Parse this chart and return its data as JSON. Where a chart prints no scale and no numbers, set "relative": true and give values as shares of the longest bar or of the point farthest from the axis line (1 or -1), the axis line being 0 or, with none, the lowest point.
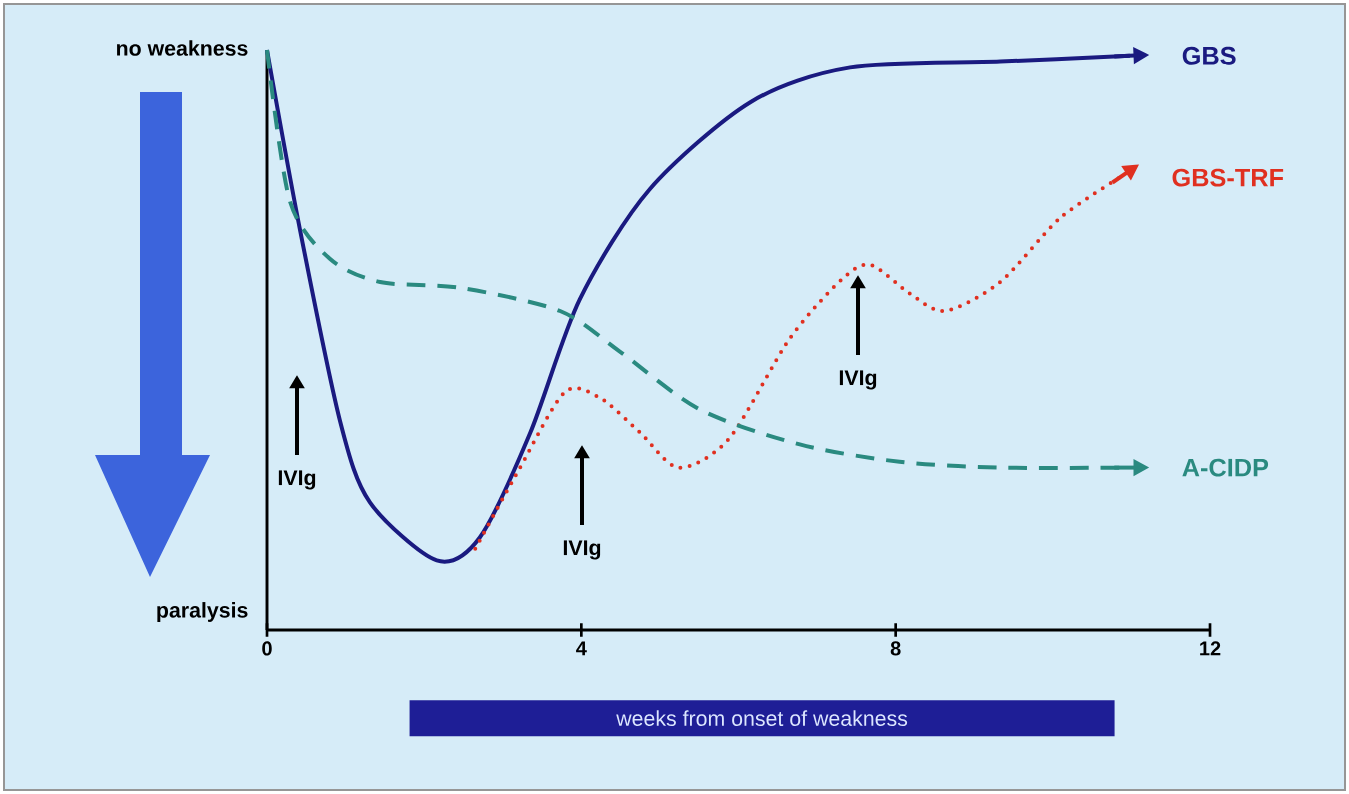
{
  "chart_data": {
    "type": "line",
    "relative": true,
    "legend": "right",
    "xlabel": "weeks from onset of weakness",
    "xlim": [
      0,
      12
    ],
    "xticks": [
      0,
      4,
      8,
      12
    ],
    "series": [
      {
        "name": "GBS",
        "color": "#1a1a80",
        "line_style": "solid",
        "x": [
          0,
          0.42,
          0.93,
          1.31,
          2.16,
          2.71,
          3.35,
          3.98,
          4.87,
          6.15,
          7.42,
          9.33,
          10.98
        ],
        "values": [
          1.0,
          0.69,
          0.36,
          0.22,
          0.12,
          0.16,
          0.34,
          0.57,
          0.76,
          0.91,
          0.97,
          0.98,
          0.99
        ]
      },
      {
        "name": "GBS-TRF",
        "color": "#e03020",
        "line_style": "dotted",
        "x": [
          2.65,
          3.22,
          3.79,
          4.24,
          4.75,
          5.24,
          5.88,
          6.64,
          7.28,
          7.67,
          8.18,
          8.63,
          9.33,
          10.09,
          10.85
        ],
        "values": [
          0.14,
          0.28,
          0.41,
          0.4,
          0.34,
          0.28,
          0.33,
          0.5,
          0.6,
          0.63,
          0.58,
          0.55,
          0.6,
          0.71,
          0.78
        ]
      },
      {
        "name": "A-CIDP",
        "color": "#2a8a80",
        "line_style": "dashed",
        "x": [
          0,
          0.29,
          0.8,
          1.44,
          2.46,
          3.73,
          4.49,
          5.51,
          6.78,
          8.05,
          9.33,
          10.98
        ],
        "values": [
          1.0,
          0.74,
          0.64,
          0.6,
          0.59,
          0.55,
          0.48,
          0.38,
          0.32,
          0.29,
          0.28,
          0.28
        ]
      }
    ],
    "annotations": [
      "no weakness",
      "paralysis",
      "IVIg",
      "IVIg",
      "IVIg"
    ]
  }
}
